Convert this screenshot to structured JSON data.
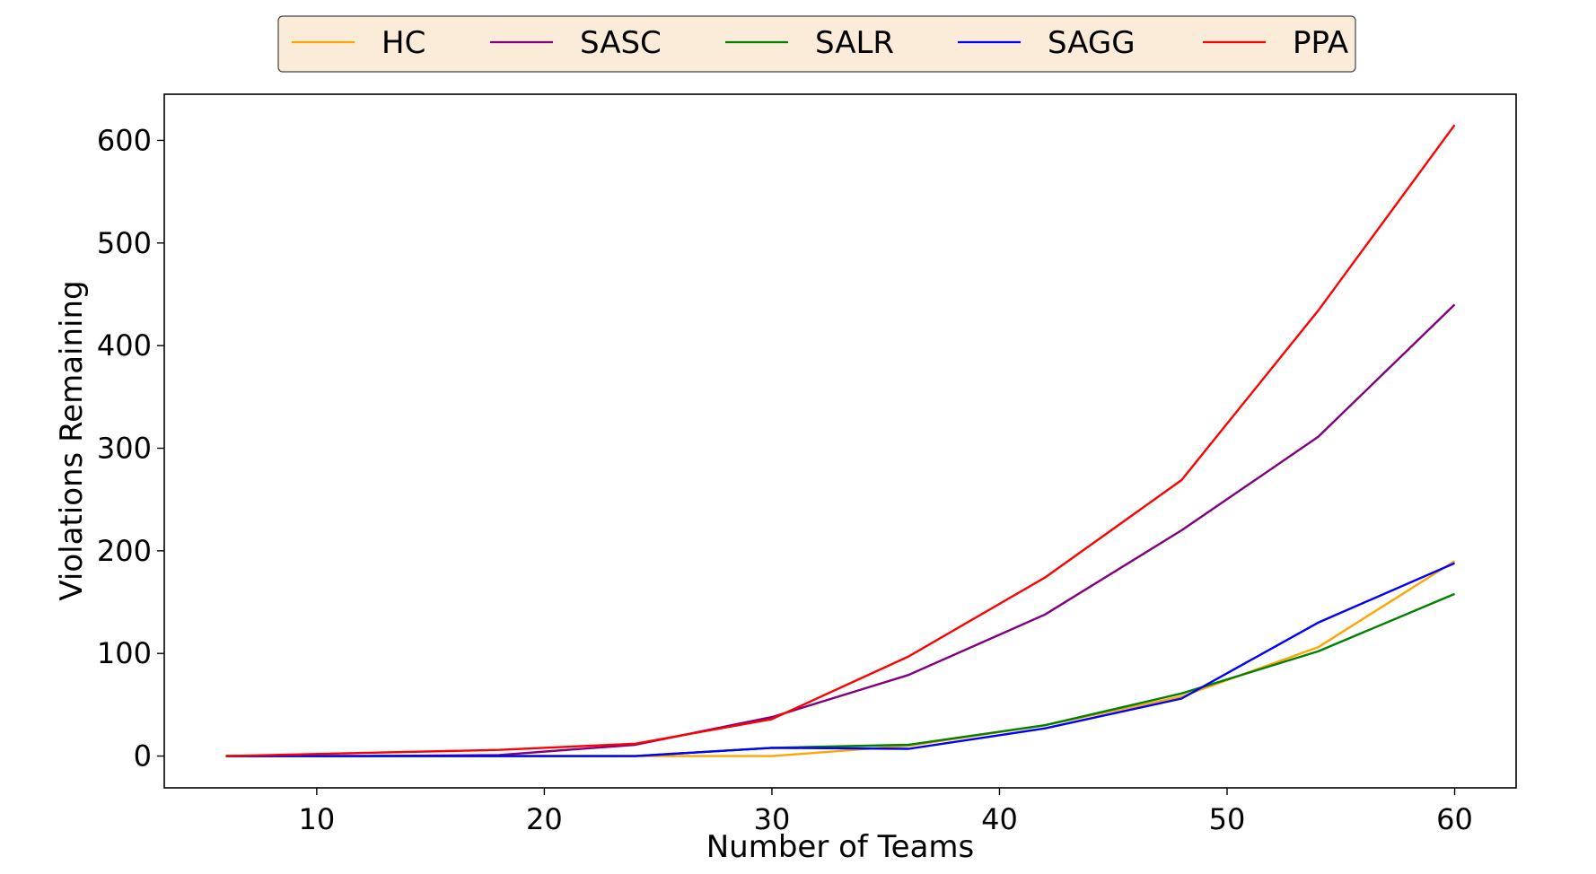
{
  "chart_data": {
    "type": "line",
    "title": "",
    "xlabel": "Number of Teams",
    "ylabel": "Violations Remaining",
    "xlim": [
      3.3,
      62.7
    ],
    "ylim": [
      -31,
      645
    ],
    "xticks": [
      10,
      20,
      30,
      40,
      50,
      60
    ],
    "yticks": [
      0,
      100,
      200,
      300,
      400,
      500,
      600
    ],
    "grid": false,
    "legend": {
      "placement": "top-center",
      "background": "#faecd8",
      "border": "#444444"
    },
    "x": [
      6,
      12,
      18,
      24,
      30,
      36,
      42,
      48,
      54,
      60
    ],
    "series": [
      {
        "name": "HC",
        "color": "#ffa500",
        "values": [
          0,
          0,
          0,
          0,
          0,
          10,
          30,
          58,
          106,
          190
        ]
      },
      {
        "name": "SASC",
        "color": "#800080",
        "values": [
          0,
          0,
          1,
          11,
          38,
          79,
          138,
          220,
          311,
          440
        ]
      },
      {
        "name": "SALR",
        "color": "#008000",
        "values": [
          0,
          0,
          0,
          0,
          8,
          11,
          30,
          61,
          102,
          158
        ]
      },
      {
        "name": "SAGG",
        "color": "#0000ff",
        "values": [
          0,
          0,
          0,
          0,
          8,
          7,
          27,
          56,
          130,
          188
        ]
      },
      {
        "name": "PPA",
        "color": "#ff0000",
        "values": [
          0,
          3,
          6,
          12,
          36,
          97,
          174,
          269,
          434,
          615
        ]
      }
    ]
  }
}
